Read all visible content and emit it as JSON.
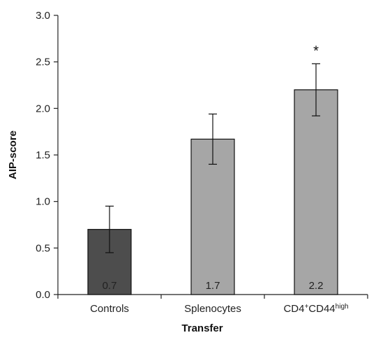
{
  "chart_data": {
    "type": "bar",
    "categories": [
      "Controls",
      "Splenocytes",
      "CD4+CD44high"
    ],
    "category_display": [
      {
        "main": "Controls",
        "sup1": "",
        "mid": "",
        "sup2": ""
      },
      {
        "main": "Splenocytes",
        "sup1": "",
        "mid": "",
        "sup2": ""
      },
      {
        "main": "CD4",
        "sup1": "+",
        "mid": "CD44",
        "sup2": "high"
      }
    ],
    "values": [
      0.7,
      1.67,
      2.2
    ],
    "error": [
      0.25,
      0.27,
      0.28
    ],
    "value_labels": [
      "0.7",
      "1.7",
      "2.2"
    ],
    "significance": [
      "",
      "",
      "*"
    ],
    "bar_colors": [
      "#4d4d4d",
      "#a6a6a6",
      "#a6a6a6"
    ],
    "xlabel": "Transfer",
    "ylabel": "AIP-score",
    "ylim": [
      0,
      3.0
    ],
    "yticks": [
      "0.0",
      "0.5",
      "1.0",
      "1.5",
      "2.0",
      "2.5",
      "3.0"
    ],
    "grid": false,
    "legend": "none"
  }
}
